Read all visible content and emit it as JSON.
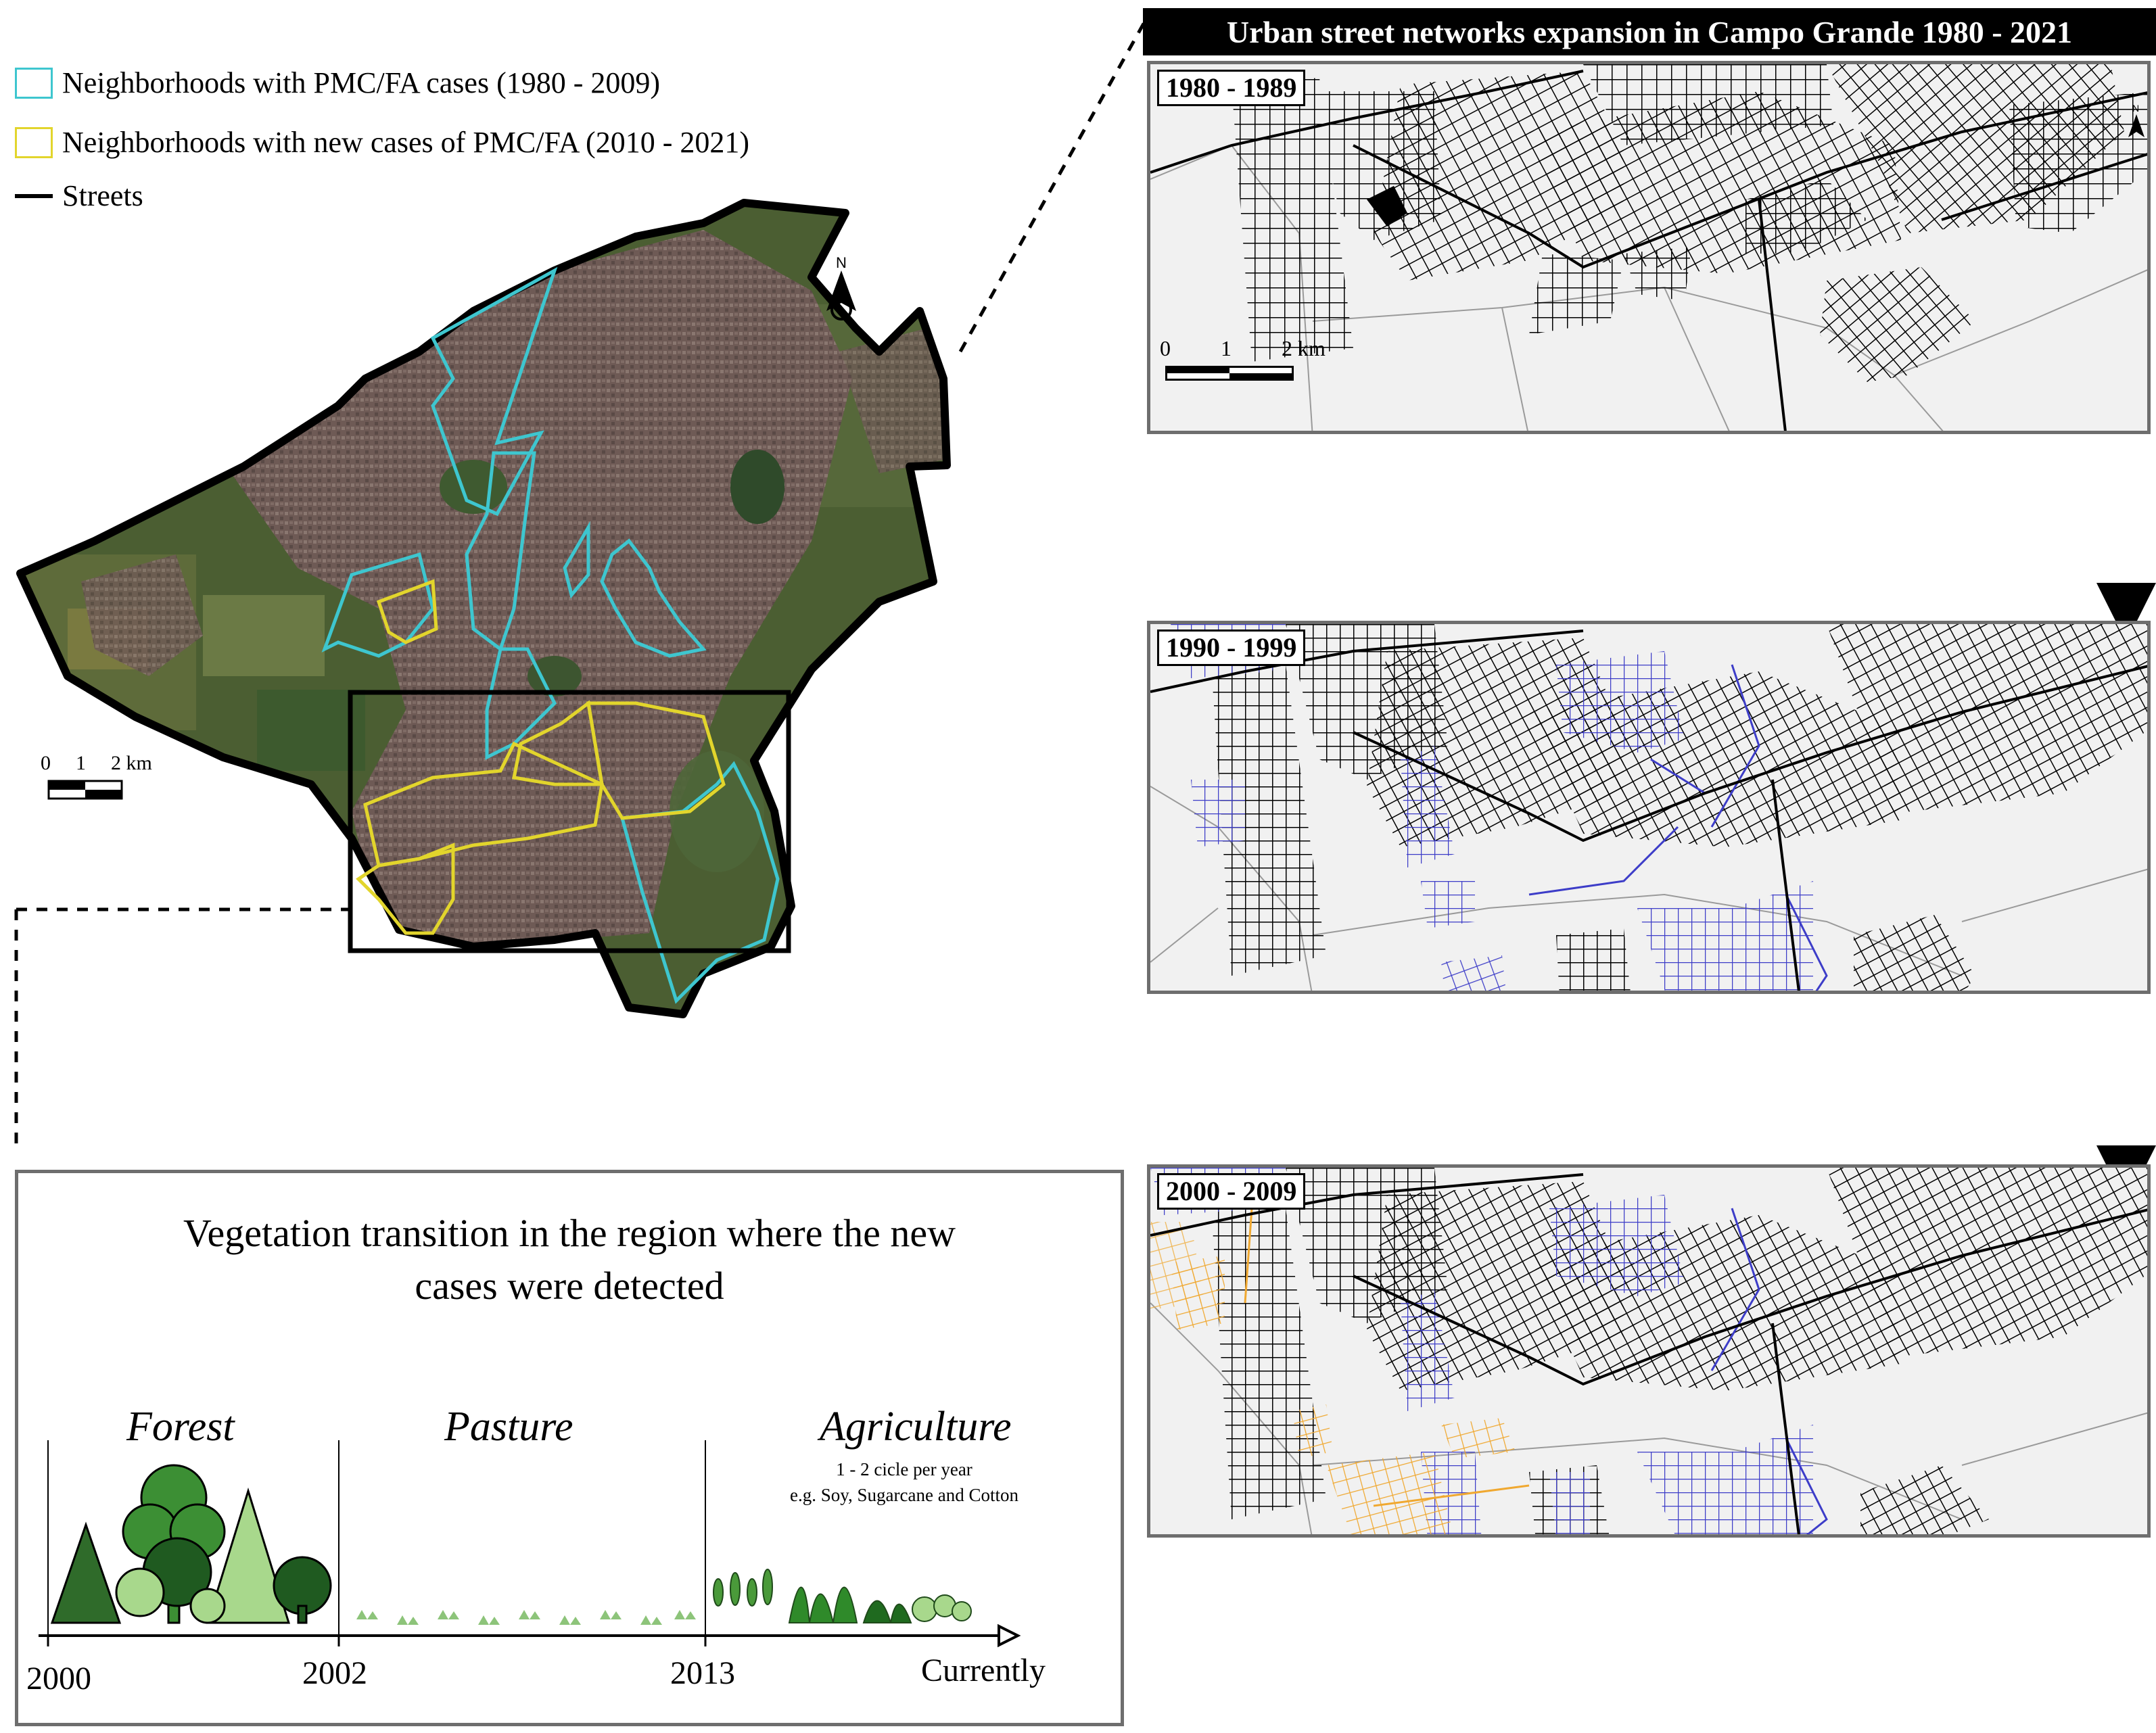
{
  "legend": {
    "items": [
      {
        "label": "Neighborhoods with PMC/FA cases (1980 - 2009)",
        "color": "#3ec6cf"
      },
      {
        "label": "Neighborhoods with new cases of PMC/FA (2010 - 2021)",
        "color": "#e2d52c"
      },
      {
        "label": "Streets",
        "color": "#000000"
      }
    ]
  },
  "overview": {
    "north_label": "N",
    "scale_labels": [
      "0",
      "1",
      "2 km"
    ]
  },
  "expansion": {
    "title": "Urban street networks expansion in Campo Grande 1980 - 2021",
    "north_label": "N",
    "scale_labels": [
      "0",
      "1",
      "2 km"
    ],
    "colors": {
      "1980s": "#000000",
      "1990s": "#3d3dc8",
      "2000s": "#f0a830"
    },
    "panels": [
      {
        "period": "1980 - 1989"
      },
      {
        "period": "1990 - 1999"
      },
      {
        "period": "2000 - 2009"
      }
    ]
  },
  "vegetation": {
    "title_line1": "Vegetation transition in the region where the new",
    "title_line2": "cases were detected",
    "stages": [
      {
        "label": "Forest",
        "start": "2000",
        "icon": "trees-icon"
      },
      {
        "label": "Pasture",
        "start": "2002",
        "icon": "grass-icon"
      },
      {
        "label": "Agriculture",
        "start": "2013",
        "icon": "crops-icon"
      }
    ],
    "agriculture_note_line1": "1 - 2 cicle per year",
    "agriculture_note_line2": "e.g. Soy, Sugarcane and Cotton",
    "end_label": "Currently"
  }
}
